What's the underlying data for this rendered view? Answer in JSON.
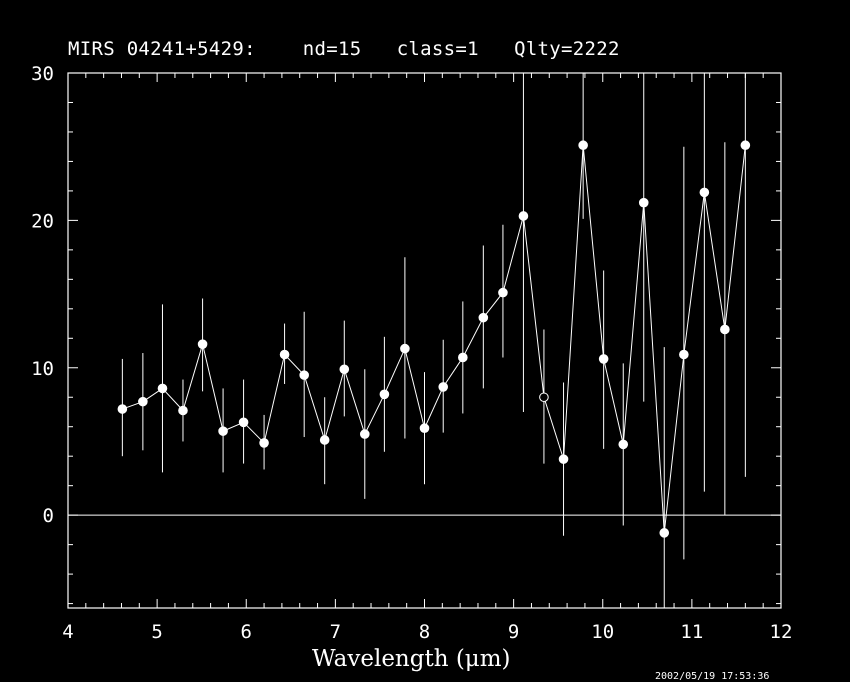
{
  "chart_data": {
    "type": "scatter",
    "title": "MIRS 04241+5429:    nd=15   class=1   Qlty=2222",
    "xlabel": "Wavelength (μm)",
    "ylabel": "",
    "xlim": [
      4,
      12
    ],
    "ylim": [
      -6.3,
      30
    ],
    "xticks": [
      4,
      5,
      6,
      7,
      8,
      9,
      10,
      11,
      12
    ],
    "yticks": [
      0,
      10,
      20,
      30
    ],
    "zero_line": true,
    "connected": true,
    "points": [
      {
        "x": 4.61,
        "y": 7.2,
        "err_lo": 4.0,
        "err_hi": 10.6,
        "filled": true
      },
      {
        "x": 4.84,
        "y": 7.7,
        "err_lo": 4.4,
        "err_hi": 11.0,
        "filled": true
      },
      {
        "x": 5.06,
        "y": 8.6,
        "err_lo": 2.9,
        "err_hi": 14.3,
        "filled": true
      },
      {
        "x": 5.29,
        "y": 7.1,
        "err_lo": 5.0,
        "err_hi": 9.2,
        "filled": true
      },
      {
        "x": 5.51,
        "y": 11.6,
        "err_lo": 8.4,
        "err_hi": 14.7,
        "filled": true
      },
      {
        "x": 5.74,
        "y": 5.7,
        "err_lo": 2.9,
        "err_hi": 8.6,
        "filled": true
      },
      {
        "x": 5.97,
        "y": 6.3,
        "err_lo": 3.5,
        "err_hi": 9.2,
        "filled": true
      },
      {
        "x": 6.2,
        "y": 4.9,
        "err_lo": 3.1,
        "err_hi": 6.8,
        "filled": true
      },
      {
        "x": 6.43,
        "y": 10.9,
        "err_lo": 8.9,
        "err_hi": 13.0,
        "filled": true
      },
      {
        "x": 6.65,
        "y": 9.5,
        "err_lo": 5.3,
        "err_hi": 13.8,
        "filled": true
      },
      {
        "x": 6.88,
        "y": 5.1,
        "err_lo": 2.1,
        "err_hi": 8.0,
        "filled": true
      },
      {
        "x": 7.1,
        "y": 9.9,
        "err_lo": 6.7,
        "err_hi": 13.2,
        "filled": true
      },
      {
        "x": 7.33,
        "y": 5.5,
        "err_lo": 1.1,
        "err_hi": 9.9,
        "filled": true
      },
      {
        "x": 7.55,
        "y": 8.2,
        "err_lo": 4.3,
        "err_hi": 12.1,
        "filled": true
      },
      {
        "x": 7.78,
        "y": 11.3,
        "err_lo": 5.2,
        "err_hi": 17.5,
        "filled": true
      },
      {
        "x": 8.0,
        "y": 5.9,
        "err_lo": 2.1,
        "err_hi": 9.7,
        "filled": true
      },
      {
        "x": 8.21,
        "y": 8.7,
        "err_lo": 5.6,
        "err_hi": 11.9,
        "filled": true
      },
      {
        "x": 8.43,
        "y": 10.7,
        "err_lo": 6.9,
        "err_hi": 14.5,
        "filled": true
      },
      {
        "x": 8.66,
        "y": 13.4,
        "err_lo": 8.6,
        "err_hi": 18.3,
        "filled": true
      },
      {
        "x": 8.88,
        "y": 15.1,
        "err_lo": 10.7,
        "err_hi": 19.7,
        "filled": true
      },
      {
        "x": 9.11,
        "y": 20.3,
        "err_lo": 7.0,
        "err_hi": 30.0,
        "filled": true
      },
      {
        "x": 9.34,
        "y": 8.0,
        "err_lo": 3.5,
        "err_hi": 12.6,
        "filled": false
      },
      {
        "x": 9.56,
        "y": 3.8,
        "err_lo": -1.4,
        "err_hi": 9.0,
        "filled": true
      },
      {
        "x": 9.78,
        "y": 25.1,
        "err_lo": 20.1,
        "err_hi": 30.0,
        "filled": true
      },
      {
        "x": 10.01,
        "y": 10.6,
        "err_lo": 4.5,
        "err_hi": 16.6,
        "filled": true
      },
      {
        "x": 10.23,
        "y": 4.8,
        "err_lo": -0.7,
        "err_hi": 10.3,
        "filled": true
      },
      {
        "x": 10.46,
        "y": 21.2,
        "err_lo": 7.7,
        "err_hi": 30.0,
        "filled": true
      },
      {
        "x": 10.69,
        "y": -1.2,
        "err_lo": -6.3,
        "err_hi": 11.4,
        "filled": true
      },
      {
        "x": 10.91,
        "y": 10.9,
        "err_lo": -3.0,
        "err_hi": 25.0,
        "filled": true
      },
      {
        "x": 11.14,
        "y": 21.9,
        "err_lo": 1.6,
        "err_hi": 30.0,
        "filled": true
      },
      {
        "x": 11.37,
        "y": 12.6,
        "err_lo": 0.0,
        "err_hi": 25.3,
        "filled": true
      },
      {
        "x": 11.6,
        "y": 25.1,
        "err_lo": 2.6,
        "err_hi": 30.0,
        "filled": true
      }
    ],
    "timestamp": "2002/05/19 17:53:36",
    "colors": {
      "background": "#000000",
      "foreground": "#ffffff"
    }
  }
}
